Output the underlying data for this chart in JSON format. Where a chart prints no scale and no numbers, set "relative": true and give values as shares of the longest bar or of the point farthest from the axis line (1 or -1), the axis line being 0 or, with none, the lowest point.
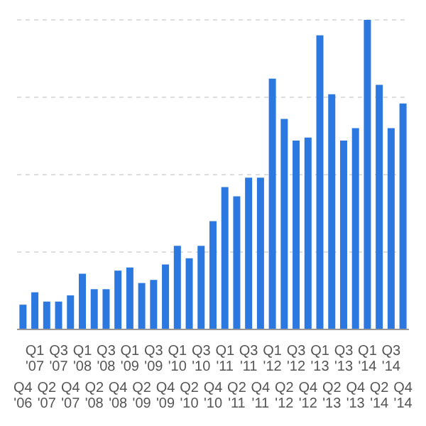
{
  "chart_data": {
    "type": "bar",
    "relative": true,
    "grid": "y",
    "color": "#2a78e0",
    "categories": [
      "Q4 '06",
      "Q1 '07",
      "Q2 '07",
      "Q3 '07",
      "Q4 '07",
      "Q1 '08",
      "Q2 '08",
      "Q3 '08",
      "Q4 '08",
      "Q1 '09",
      "Q2 '09",
      "Q3 '09",
      "Q4 '09",
      "Q1 '10",
      "Q2 '10",
      "Q3 '10",
      "Q4 '10",
      "Q1 '11",
      "Q2 '11",
      "Q3 '11",
      "Q4 '11",
      "Q1 '12",
      "Q2 '12",
      "Q3 '12",
      "Q4 '12",
      "Q1 '13",
      "Q2 '13",
      "Q3 '13",
      "Q4 '13",
      "Q1 '14",
      "Q2 '14",
      "Q3 '14",
      "Q4 '14"
    ],
    "values": [
      0.08,
      0.12,
      0.09,
      0.09,
      0.11,
      0.18,
      0.13,
      0.13,
      0.19,
      0.2,
      0.15,
      0.16,
      0.21,
      0.27,
      0.23,
      0.27,
      0.35,
      0.46,
      0.43,
      0.49,
      0.49,
      0.81,
      0.68,
      0.61,
      0.62,
      0.95,
      0.76,
      0.61,
      0.65,
      1,
      0.79,
      0.65,
      0.73
    ]
  }
}
